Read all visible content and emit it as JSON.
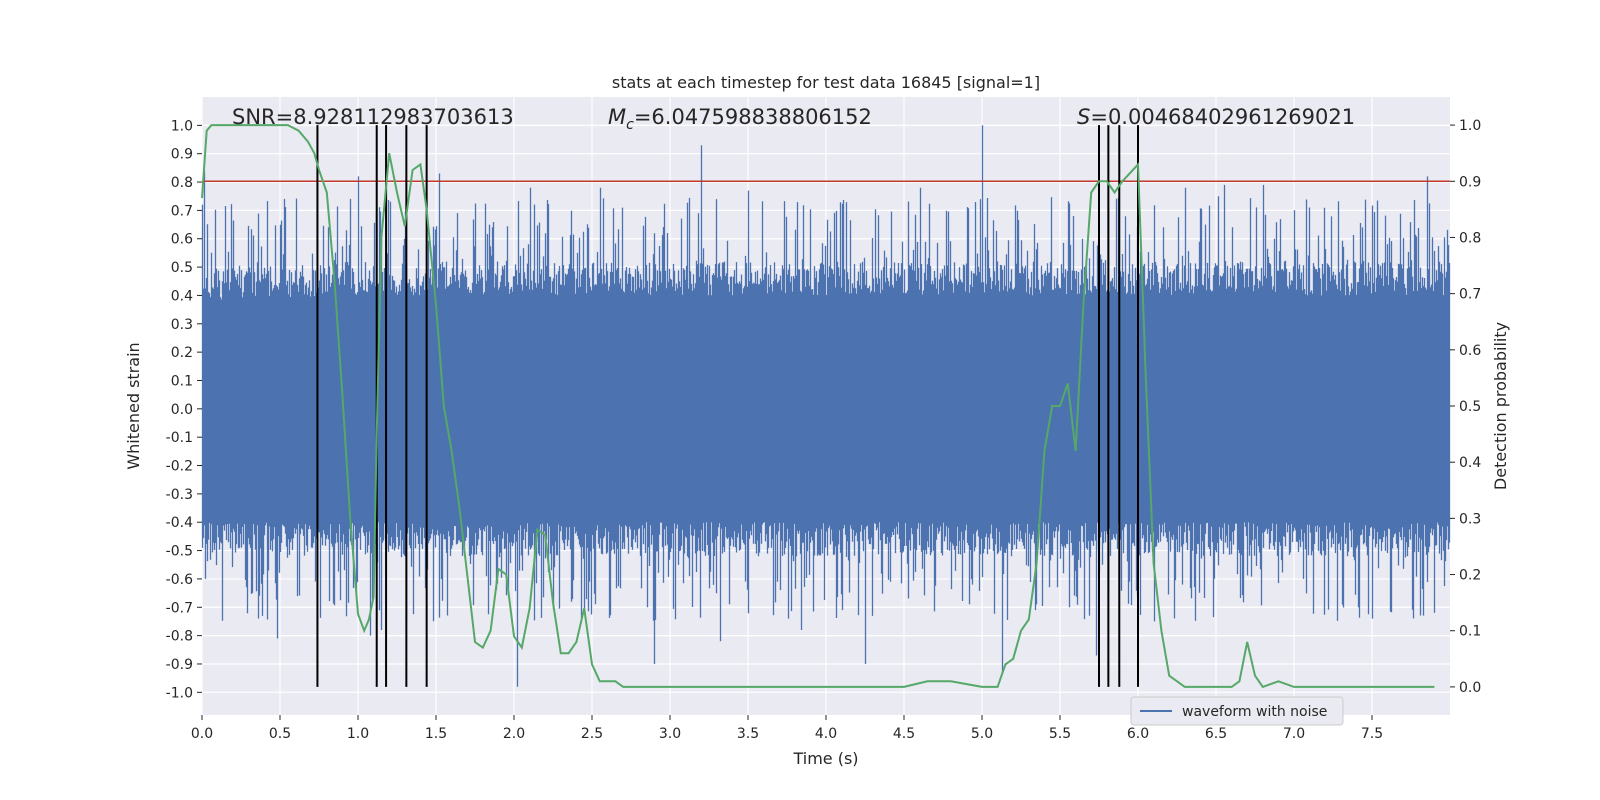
{
  "chart_data": {
    "type": "line",
    "title": "stats at each timestep for test data 16845 [signal=1]",
    "xlabel": "Time (s)",
    "ylabel": "Whitened strain",
    "ylabel_right": "Detection probability",
    "xlim": [
      0,
      8
    ],
    "ylim": [
      -1.08,
      1.1
    ],
    "ylim_right": [
      -0.05,
      1.05
    ],
    "x_ticks": [
      0.0,
      0.5,
      1.0,
      1.5,
      2.0,
      2.5,
      3.0,
      3.5,
      4.0,
      4.5,
      5.0,
      5.5,
      6.0,
      6.5,
      7.0,
      7.5
    ],
    "x_tick_labels": [
      "0.0",
      "0.5",
      "1.0",
      "1.5",
      "2.0",
      "2.5",
      "3.0",
      "3.5",
      "4.0",
      "4.5",
      "5.0",
      "5.5",
      "6.0",
      "6.5",
      "7.0",
      "7.5"
    ],
    "y_ticks": [
      1.0,
      0.9,
      0.8,
      0.7,
      0.6,
      0.5,
      0.4,
      0.3,
      0.2,
      0.1,
      0.0,
      -0.1,
      -0.2,
      -0.3,
      -0.4,
      -0.5,
      -0.6,
      -0.7,
      -0.8,
      -0.9,
      -1.0
    ],
    "y_tick_labels": [
      "1.0",
      "0.9",
      "0.8",
      "0.7",
      "0.6",
      "0.5",
      "0.4",
      "0.3",
      "0.2",
      "0.1",
      "0.0",
      "-0.1",
      "-0.2",
      "-0.3",
      "-0.4",
      "-0.5",
      "-0.6",
      "-0.7",
      "-0.8",
      "-0.9",
      "-1.0"
    ],
    "y_right_ticks": [
      1.0,
      0.9,
      0.8,
      0.7,
      0.6,
      0.5,
      0.4,
      0.3,
      0.2,
      0.1,
      0.0
    ],
    "y_right_tick_labels": [
      "1.0",
      "0.9",
      "0.8",
      "0.7",
      "0.6",
      "0.5",
      "0.4",
      "0.3",
      "0.2",
      "0.1",
      "0.0"
    ],
    "grid": true,
    "legend_position": "lower-right",
    "annotations": [
      {
        "text": "SNR=8.928112983703613"
      },
      {
        "text": "M",
        "sub": "c",
        "rest": "=6.047598838806152"
      },
      {
        "text": "S",
        "rest": "=0.00468402961269021"
      }
    ],
    "threshold": 0.9,
    "threshold_color": "#c0392b",
    "detection_times": [
      0.74,
      1.12,
      1.18,
      1.31,
      1.44,
      5.75,
      5.81,
      5.88,
      6.0
    ],
    "series": [
      {
        "name": "waveform with noise",
        "color": "#4c72b0",
        "axis": "left",
        "duration": 8.0,
        "band_envelope": [
          [
            0.0,
            0.38,
            -0.4
          ],
          [
            1.0,
            0.4,
            -0.4
          ],
          [
            2.0,
            0.4,
            -0.4
          ],
          [
            3.0,
            0.4,
            -0.4
          ],
          [
            4.0,
            0.4,
            -0.4
          ],
          [
            5.0,
            0.4,
            -0.4
          ],
          [
            6.0,
            0.4,
            -0.4
          ],
          [
            7.0,
            0.4,
            -0.4
          ],
          [
            8.0,
            0.4,
            -0.4
          ]
        ],
        "spikes": [
          [
            0.01,
            0.84
          ],
          [
            0.02,
            -0.6
          ],
          [
            0.48,
            -0.81
          ],
          [
            1.0,
            0.82
          ],
          [
            1.08,
            -0.8
          ],
          [
            1.15,
            -0.78
          ],
          [
            1.52,
            0.83
          ],
          [
            2.02,
            -0.98
          ],
          [
            2.1,
            0.78
          ],
          [
            2.55,
            0.78
          ],
          [
            2.9,
            -0.9
          ],
          [
            3.2,
            0.93
          ],
          [
            3.32,
            -0.82
          ],
          [
            3.5,
            0.77
          ],
          [
            3.84,
            -0.78
          ],
          [
            4.25,
            -0.9
          ],
          [
            4.6,
            0.78
          ],
          [
            5.0,
            1.0
          ],
          [
            5.13,
            -0.93
          ],
          [
            5.73,
            -0.87
          ],
          [
            6.1,
            -0.75
          ],
          [
            6.3,
            0.78
          ],
          [
            6.55,
            0.79
          ],
          [
            6.8,
            0.79
          ],
          [
            7.5,
            -0.74
          ],
          [
            7.85,
            0.82
          ],
          [
            7.9,
            -0.72
          ]
        ]
      },
      {
        "name": "",
        "color": "#55a868",
        "axis": "right",
        "x": [
          0.0,
          0.03,
          0.06,
          0.12,
          0.18,
          0.25,
          0.35,
          0.45,
          0.55,
          0.62,
          0.68,
          0.72,
          0.75,
          0.8,
          0.85,
          0.9,
          0.95,
          1.0,
          1.04,
          1.07,
          1.1,
          1.12,
          1.15,
          1.2,
          1.25,
          1.3,
          1.35,
          1.4,
          1.44,
          1.5,
          1.55,
          1.6,
          1.65,
          1.7,
          1.75,
          1.8,
          1.85,
          1.9,
          1.95,
          2.0,
          2.05,
          2.1,
          2.15,
          2.2,
          2.25,
          2.3,
          2.35,
          2.4,
          2.45,
          2.5,
          2.55,
          2.6,
          2.65,
          2.7,
          2.8,
          3.0,
          3.2,
          3.5,
          4.0,
          4.3,
          4.5,
          4.65,
          4.8,
          5.0,
          5.05,
          5.1,
          5.15,
          5.2,
          5.25,
          5.3,
          5.35,
          5.4,
          5.45,
          5.5,
          5.55,
          5.6,
          5.65,
          5.7,
          5.75,
          5.8,
          5.85,
          5.9,
          6.0,
          6.05,
          6.1,
          6.15,
          6.2,
          6.3,
          6.4,
          6.5,
          6.6,
          6.65,
          6.7,
          6.75,
          6.8,
          6.9,
          7.0,
          7.2,
          7.5,
          7.9
        ],
        "values": [
          0.87,
          0.99,
          1.0,
          1.0,
          1.0,
          1.0,
          1.0,
          1.0,
          1.0,
          0.99,
          0.97,
          0.95,
          0.92,
          0.88,
          0.72,
          0.52,
          0.3,
          0.13,
          0.1,
          0.12,
          0.16,
          0.45,
          0.8,
          0.95,
          0.88,
          0.82,
          0.92,
          0.93,
          0.85,
          0.68,
          0.5,
          0.42,
          0.32,
          0.2,
          0.08,
          0.07,
          0.1,
          0.21,
          0.2,
          0.09,
          0.07,
          0.14,
          0.28,
          0.27,
          0.15,
          0.06,
          0.06,
          0.08,
          0.14,
          0.04,
          0.01,
          0.01,
          0.01,
          0.0,
          0.0,
          0.0,
          0.0,
          0.0,
          0.0,
          0.0,
          0.0,
          0.01,
          0.01,
          0.0,
          0.0,
          0.0,
          0.04,
          0.05,
          0.1,
          0.12,
          0.22,
          0.42,
          0.5,
          0.5,
          0.54,
          0.42,
          0.68,
          0.88,
          0.9,
          0.9,
          0.88,
          0.9,
          0.93,
          0.55,
          0.22,
          0.1,
          0.02,
          0.0,
          0.0,
          0.0,
          0.0,
          0.01,
          0.08,
          0.02,
          0.0,
          0.01,
          0.0,
          0.0,
          0.0,
          0.0
        ]
      }
    ]
  }
}
